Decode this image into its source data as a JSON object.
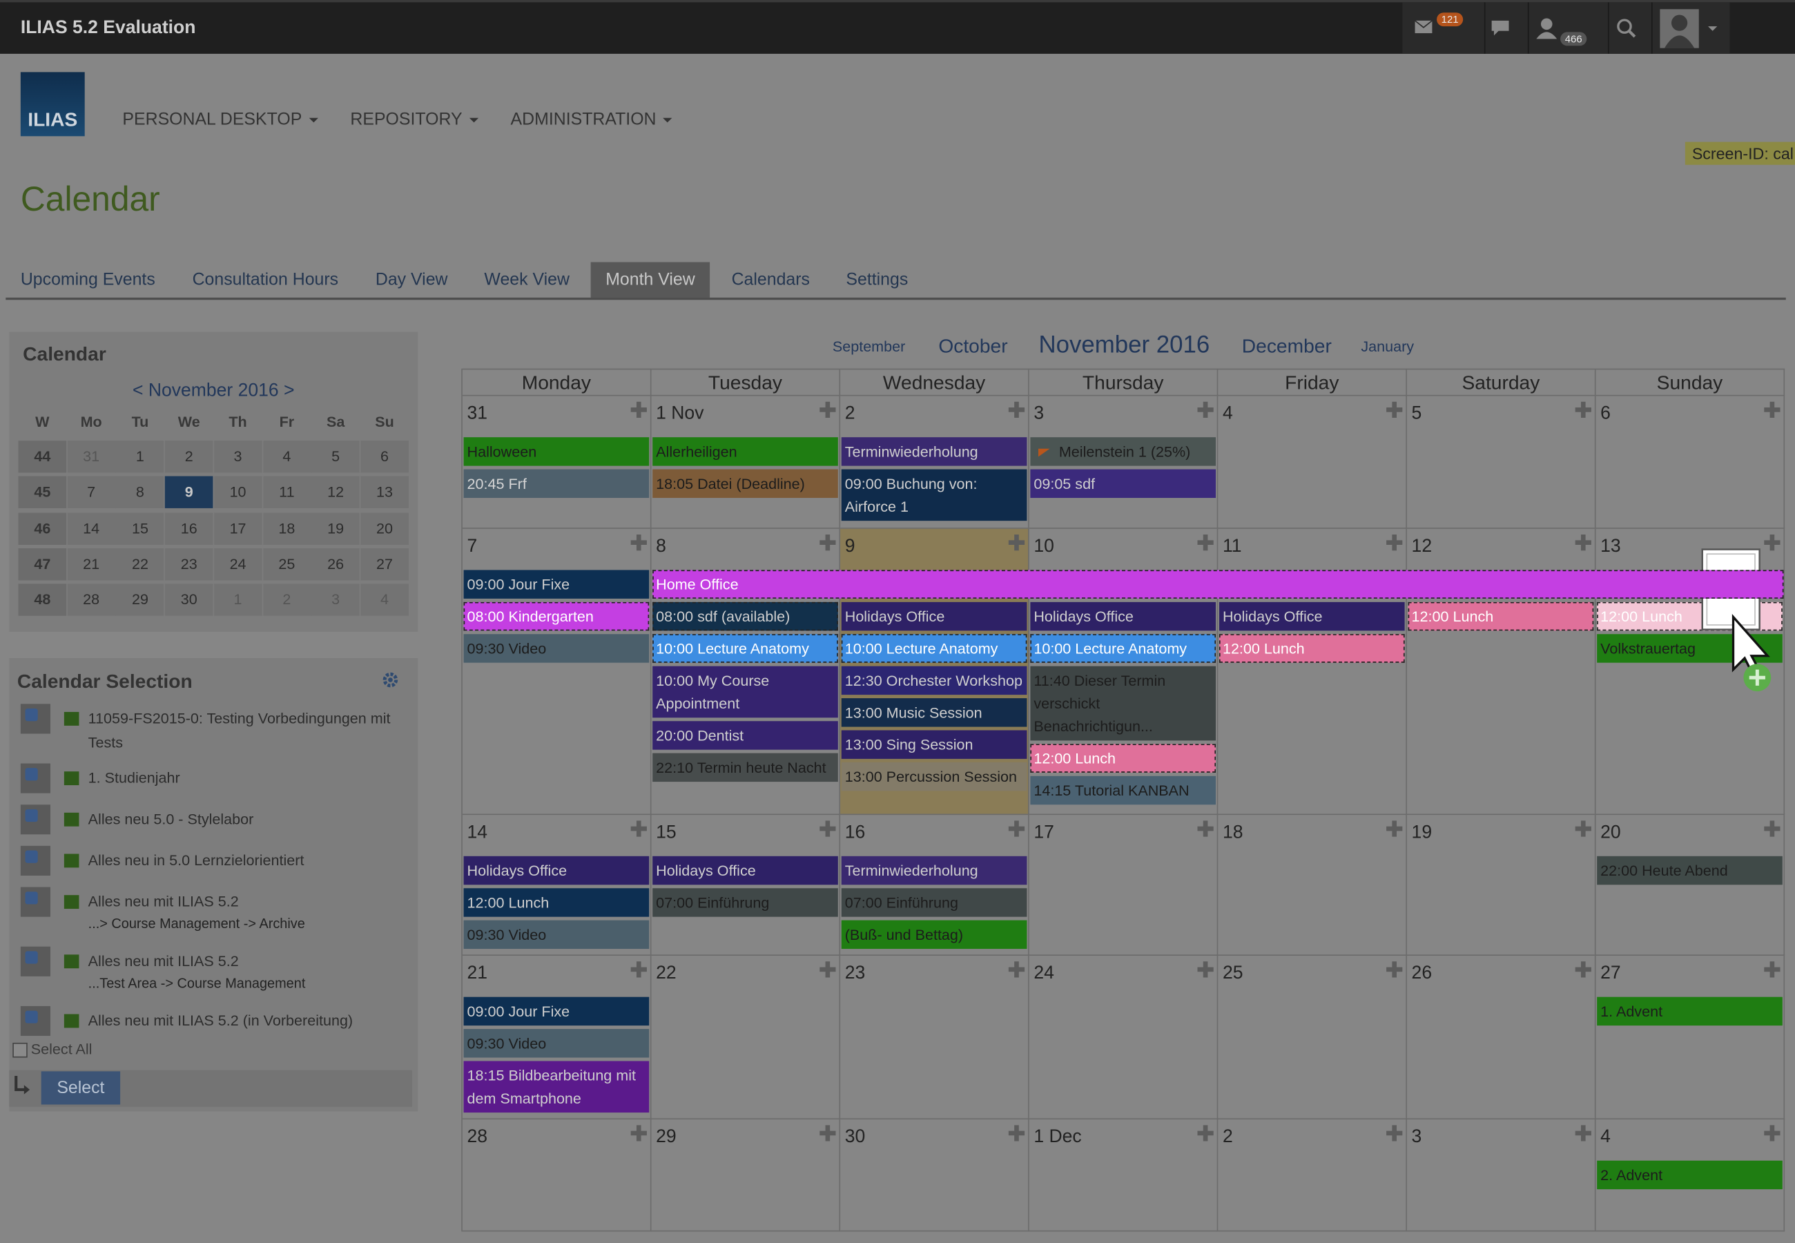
{
  "header": {
    "title": "ILIAS 5.2 Evaluation",
    "mail_badge": 121,
    "contacts_badge": 466
  },
  "logo": "ILIAS",
  "nav": [
    "PERSONAL DESKTOP",
    "REPOSITORY",
    "ADMINISTRATION"
  ],
  "screen_id": "Screen-ID: cal",
  "page_title": "Calendar",
  "tabs": {
    "items": [
      "Upcoming Events",
      "Consultation Hours",
      "Day View",
      "Week View",
      "Month View",
      "Calendars",
      "Settings"
    ],
    "active": 4
  },
  "mini_calendar": {
    "title": "Calendar",
    "month_nav": "< November 2016 >",
    "headers": [
      "W",
      "Mo",
      "Tu",
      "We",
      "Th",
      "Fr",
      "Sa",
      "Su"
    ],
    "selected_day": 9,
    "rows": [
      {
        "week": 44,
        "days": [
          31,
          1,
          2,
          3,
          4,
          5,
          6
        ]
      },
      {
        "week": 45,
        "days": [
          7,
          8,
          9,
          10,
          11,
          12,
          13
        ]
      },
      {
        "week": 46,
        "days": [
          14,
          15,
          16,
          17,
          18,
          19,
          20
        ]
      },
      {
        "week": 47,
        "days": [
          21,
          22,
          23,
          24,
          25,
          26,
          27
        ]
      },
      {
        "week": 48,
        "days": [
          28,
          29,
          30,
          1,
          2,
          3,
          4
        ]
      }
    ]
  },
  "calendar_selection": {
    "title": "Calendar Selection",
    "items": [
      {
        "label": "11059-FS2015-0: Testing Vorbedingungen mit Tests"
      },
      {
        "label": "1. Studienjahr"
      },
      {
        "label": "Alles neu 5.0 - Stylelabor"
      },
      {
        "label": "Alles neu in 5.0 Lernzielorientiert"
      },
      {
        "label": "Alles neu mit ILIAS 5.2",
        "sub": "...> Course Management -> Archive"
      },
      {
        "label": "Alles neu mit ILIAS 5.2",
        "sub": "...Test Area -> Course Management"
      },
      {
        "label": "Alles neu mit ILIAS 5.2 (in Vorbereitung)"
      }
    ],
    "select_all": "Select All",
    "button": "Select"
  },
  "month": {
    "nav": [
      "September",
      "October",
      "November 2016",
      "December",
      "January"
    ],
    "current": 2,
    "weekdays": [
      "Monday",
      "Tuesday",
      "Wednesday",
      "Thursday",
      "Friday",
      "Saturday",
      "Sunday"
    ],
    "weeks": [
      {
        "days": [
          {
            "label": "31",
            "events": [
              {
                "text": "Halloween",
                "color": "#1f7d12",
                "fg": "#1c1c1c"
              },
              {
                "text": "20:45 Frf",
                "color": "#4e606c",
                "fg": "#d6d6d6"
              }
            ]
          },
          {
            "label": "1 Nov",
            "events": [
              {
                "text": "Allerheiligen",
                "color": "#1f7d12",
                "fg": "#1c1c1c"
              },
              {
                "text": "18:05 Datei (Deadline)",
                "color": "#7d5b38",
                "fg": "#1c1c1c"
              }
            ]
          },
          {
            "label": "2",
            "events": [
              {
                "text": "Terminwiederholung",
                "color": "#3a2970",
                "fg": "#cfcfcf"
              },
              {
                "text": "09:00 Buchung von: Airforce 1",
                "color": "#0f2b4b",
                "fg": "#cfcfcf"
              }
            ]
          },
          {
            "label": "3",
            "events": [
              {
                "text": "Meilenstein 1 (25%)",
                "color": "#4b5553",
                "fg": "#1c1c1c",
                "flag": true
              },
              {
                "text": "09:05 sdf",
                "color": "#3b2a7c",
                "fg": "#cfcfcf"
              }
            ]
          },
          {
            "label": "4",
            "events": []
          },
          {
            "label": "5",
            "events": []
          },
          {
            "label": "6",
            "events": []
          }
        ]
      },
      {
        "span": {
          "text": "Home Office",
          "color": "#c43fe2",
          "fg": "#ffffff",
          "dashed": true,
          "start": 1,
          "end": 6
        },
        "days": [
          {
            "label": "7",
            "events": [
              {
                "text": "09:00 Jour Fixe",
                "color": "#0d2f52",
                "fg": "#cfcfcf"
              },
              {
                "text": "08:00 Kindergarten",
                "color": "#c43fe2",
                "fg": "#ffffff",
                "dashed": true
              },
              {
                "text": "09:30 Video",
                "color": "#4b5f6b",
                "fg": "#1c1c1c"
              }
            ]
          },
          {
            "label": "8",
            "events": [
              {
                "text": "08:00 sdf (available)",
                "color": "#12304b",
                "fg": "#cfcfcf",
                "dashed": true
              },
              {
                "text": "10:00 Lecture Anatomy",
                "color": "#3d8de2",
                "fg": "#ffffff",
                "dashed": true
              },
              {
                "text": "10:00 My Course Appointment",
                "color": "#35236f",
                "fg": "#cfcfcf"
              },
              {
                "text": "20:00 Dentist",
                "color": "#35236f",
                "fg": "#cfcfcf"
              },
              {
                "text": "22:10 Termin heute Nacht",
                "color": "#474c4c",
                "fg": "#1c1c1c"
              }
            ]
          },
          {
            "label": "9",
            "highlight": true,
            "events": [
              {
                "text": "Holidays Office",
                "color": "#2e2166",
                "fg": "#cfcfcf"
              },
              {
                "text": "10:00 Lecture Anatomy",
                "color": "#3d8de2",
                "fg": "#ffffff",
                "dashed": true
              },
              {
                "text": "12:30 Orchester Workshop",
                "color": "#2c2672",
                "fg": "#cfcfcf"
              },
              {
                "text": "13:00 Music Session",
                "color": "#132c4b",
                "fg": "#cfcfcf"
              },
              {
                "text": "13:00 Sing Session",
                "color": "#2e2166",
                "fg": "#cfcfcf"
              },
              {
                "text": "13:00 Percussion Session",
                "color": "#837b68",
                "fg": "#1c1c1c"
              }
            ]
          },
          {
            "label": "10",
            "events": [
              {
                "text": "Holidays Office",
                "color": "#2e2166",
                "fg": "#cfcfcf"
              },
              {
                "text": "10:00 Lecture Anatomy",
                "color": "#3d8de2",
                "fg": "#ffffff",
                "dashed": true
              },
              {
                "text": "11:40 Dieser Termin verschickt Benachrichtigun...",
                "color": "#3e4545",
                "fg": "#1c1c1c"
              },
              {
                "text": "12:00 Lunch",
                "color": "#e0709a",
                "fg": "#ffffff",
                "dashed": true
              },
              {
                "text": "14:15 Tutorial KANBAN",
                "color": "#4b6272",
                "fg": "#1c1c1c"
              }
            ]
          },
          {
            "label": "11",
            "events": [
              {
                "text": "Holidays Office",
                "color": "#2e2166",
                "fg": "#cfcfcf"
              },
              {
                "text": "12:00 Lunch",
                "color": "#e0709a",
                "fg": "#ffffff",
                "dashed": true
              }
            ]
          },
          {
            "label": "12",
            "events": [
              {
                "text": "12:00 Lunch",
                "color": "#e0709a",
                "fg": "#ffffff",
                "dashed": true
              }
            ]
          },
          {
            "label": "13",
            "events": [
              {
                "text": "12:00 Lunch",
                "color": "#f4c6d6",
                "fg": "#ffffff",
                "dashed": true
              },
              {
                "text": "Volkstrauertag",
                "color": "#1f7d12",
                "fg": "#1c1c1c"
              }
            ]
          }
        ]
      },
      {
        "days": [
          {
            "label": "14",
            "events": [
              {
                "text": "Holidays Office",
                "color": "#2e2166",
                "fg": "#cfcfcf"
              },
              {
                "text": "12:00 Lunch",
                "color": "#0d2f52",
                "fg": "#cfcfcf"
              },
              {
                "text": "09:30 Video",
                "color": "#4b5f6b",
                "fg": "#1c1c1c"
              }
            ]
          },
          {
            "label": "15",
            "events": [
              {
                "text": "Holidays Office",
                "color": "#2e2166",
                "fg": "#cfcfcf"
              },
              {
                "text": "07:00 Einführung",
                "color": "#404848",
                "fg": "#1c1c1c"
              }
            ]
          },
          {
            "label": "16",
            "events": [
              {
                "text": "Terminwiederholung",
                "color": "#3a2970",
                "fg": "#cfcfcf"
              },
              {
                "text": "07:00 Einführung",
                "color": "#404848",
                "fg": "#1c1c1c"
              },
              {
                "text": "(Buß- und Bettag)",
                "color": "#1f7d12",
                "fg": "#1c1c1c"
              }
            ]
          },
          {
            "label": "17",
            "events": []
          },
          {
            "label": "18",
            "events": []
          },
          {
            "label": "19",
            "events": []
          },
          {
            "label": "20",
            "events": [
              {
                "text": "22:00 Heute Abend",
                "color": "#404a48",
                "fg": "#1c1c1c"
              }
            ]
          }
        ]
      },
      {
        "days": [
          {
            "label": "21",
            "events": [
              {
                "text": "09:00 Jour Fixe",
                "color": "#0d2f52",
                "fg": "#cfcfcf"
              },
              {
                "text": "09:30 Video",
                "color": "#4b5f6b",
                "fg": "#1c1c1c"
              },
              {
                "text": "18:15 Bildbearbeitung mit dem Smartphone",
                "color": "#5b1a8c",
                "fg": "#cfcfcf"
              }
            ]
          },
          {
            "label": "22",
            "events": []
          },
          {
            "label": "23",
            "events": []
          },
          {
            "label": "24",
            "events": []
          },
          {
            "label": "25",
            "events": []
          },
          {
            "label": "26",
            "events": []
          },
          {
            "label": "27",
            "events": [
              {
                "text": "1. Advent",
                "color": "#1f7d12",
                "fg": "#1c1c1c"
              }
            ]
          }
        ]
      },
      {
        "days": [
          {
            "label": "28",
            "events": []
          },
          {
            "label": "29",
            "events": []
          },
          {
            "label": "30",
            "events": []
          },
          {
            "label": "1 Dec",
            "events": []
          },
          {
            "label": "2",
            "events": []
          },
          {
            "label": "3",
            "events": []
          },
          {
            "label": "4",
            "events": [
              {
                "text": "2. Advent",
                "color": "#1f7d12",
                "fg": "#1c1c1c"
              }
            ]
          }
        ]
      }
    ]
  }
}
